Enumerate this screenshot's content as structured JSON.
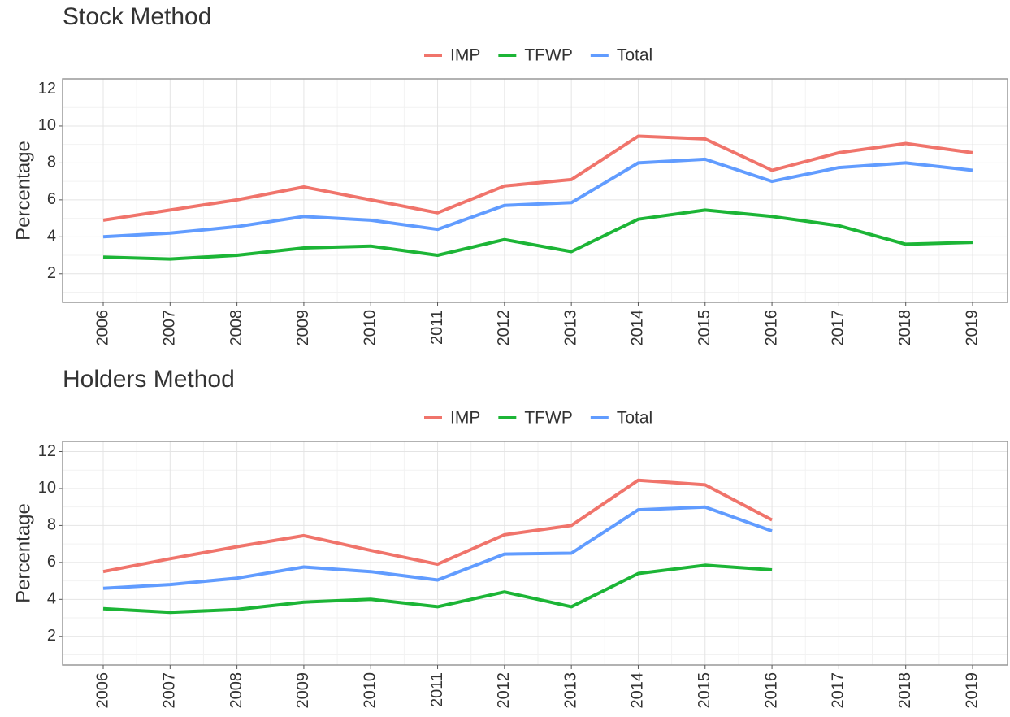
{
  "chart_data": [
    {
      "type": "line",
      "title": "Stock Method",
      "y_label": "Percentage",
      "categories": [
        "2006",
        "2007",
        "2008",
        "2009",
        "2010",
        "2011",
        "2012",
        "2013",
        "2014",
        "2015",
        "2016",
        "2017",
        "2018",
        "2019"
      ],
      "series": [
        {
          "name": "IMP",
          "color": "#f0746b",
          "values": [
            4.9,
            5.45,
            6.0,
            6.7,
            6.0,
            5.3,
            6.75,
            7.1,
            9.45,
            9.3,
            7.6,
            8.55,
            9.05,
            8.55
          ]
        },
        {
          "name": "TFWP",
          "color": "#1cb536",
          "values": [
            2.9,
            2.8,
            3.0,
            3.4,
            3.5,
            3.0,
            3.85,
            3.2,
            4.95,
            5.45,
            5.1,
            4.6,
            3.6,
            3.7
          ]
        },
        {
          "name": "Total",
          "color": "#619cff",
          "values": [
            4.0,
            4.2,
            4.55,
            5.1,
            4.9,
            4.4,
            5.7,
            5.85,
            8.0,
            8.2,
            7.0,
            7.75,
            8.0,
            7.6
          ]
        }
      ],
      "ylim": [
        0.45,
        12.55
      ],
      "yticks": [
        2,
        4,
        6,
        8,
        10,
        12
      ],
      "grid": true,
      "legend": "top"
    },
    {
      "type": "line",
      "title": "Holders Method",
      "y_label": "Percentage",
      "categories": [
        "2006",
        "2007",
        "2008",
        "2009",
        "2010",
        "2011",
        "2012",
        "2013",
        "2014",
        "2015",
        "2016",
        "2017",
        "2018",
        "2019"
      ],
      "series": [
        {
          "name": "IMP",
          "color": "#f0746b",
          "values": [
            5.5,
            6.2,
            6.85,
            7.45,
            6.65,
            5.9,
            7.5,
            8.0,
            10.45,
            10.2,
            8.3,
            null,
            null,
            null
          ]
        },
        {
          "name": "TFWP",
          "color": "#1cb536",
          "values": [
            3.5,
            3.3,
            3.45,
            3.85,
            4.0,
            3.6,
            4.4,
            3.6,
            5.4,
            5.85,
            5.6,
            null,
            null,
            null
          ]
        },
        {
          "name": "Total",
          "color": "#619cff",
          "values": [
            4.6,
            4.8,
            5.15,
            5.75,
            5.5,
            5.05,
            6.45,
            6.5,
            8.85,
            9.0,
            7.7,
            null,
            null,
            null
          ]
        }
      ],
      "ylim": [
        0.45,
        12.55
      ],
      "yticks": [
        2,
        4,
        6,
        8,
        10,
        12
      ],
      "grid": true,
      "legend": "top"
    }
  ]
}
